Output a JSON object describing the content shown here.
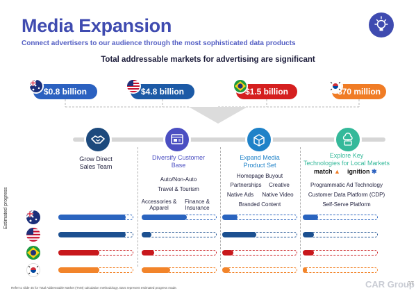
{
  "header": {
    "title": "Media Expansion",
    "subtitle": "Connect advertisers to our audience through the most sophisticated data products",
    "headline": "Total addressable markets for advertising are significant"
  },
  "markets": [
    {
      "label": "$0.8 billion",
      "color": "#2b61c0",
      "flag": "australia"
    },
    {
      "label": "$4.8 billion",
      "color": "#1c5aa6",
      "flag": "united-states"
    },
    {
      "label": "$1.5 billion",
      "color": "#d51f1f",
      "flag": "brazil"
    },
    {
      "label": "$70 million",
      "color": "#f07c25",
      "flag": "south-korea"
    }
  ],
  "columns": {
    "col1": {
      "title_line1": "Grow Direct",
      "title_line2": "Sales Team",
      "color": "#1d4a7d",
      "icon": "handshake-icon"
    },
    "col2": {
      "title_line1": "Diversify Customer",
      "title_line2": "Base",
      "color": "#4b4fc2",
      "icon": "browser-window-icon",
      "items": {
        "a": "Auto/Non-Auto",
        "b": "Travel & Tourism",
        "c1": "Accessories &",
        "c2": "Apparel",
        "d1": "Finance &",
        "d2": "Insurance"
      }
    },
    "col3": {
      "title_line1": "Expand Media",
      "title_line2": "Product Set",
      "color": "#1f82c8",
      "icon": "box-icon",
      "items": {
        "a": "Homepage Buyout",
        "b": "Partnerships",
        "c": "Creative",
        "d": "Native Ads",
        "e": "Native Video",
        "f": "Branded Content"
      }
    },
    "col4": {
      "title_line1": "Explore Key",
      "title_line2": "Technologies for Local Markets",
      "color": "#35b99a",
      "icon": "cloud-monitor-icon",
      "partner1": "match",
      "partner2": "ignition",
      "items": {
        "a": "Programmatic Ad Technology",
        "b": "Customer Data Platform (CDP)",
        "c": "Self-Serve Platform"
      }
    }
  },
  "progress": {
    "axis_label": "Estimated progress",
    "rows": [
      {
        "country": "australia",
        "color": "#2a64bf",
        "values": [
          0.9,
          0.6,
          0.2,
          0.2
        ]
      },
      {
        "country": "united-states",
        "color": "#1c5090",
        "values": [
          0.9,
          0.13,
          0.45,
          0.15
        ]
      },
      {
        "country": "brazil",
        "color": "#c8181c",
        "values": [
          0.55,
          0.17,
          0.15,
          0.15
        ]
      },
      {
        "country": "south-korea",
        "color": "#f2842a",
        "values": [
          0.55,
          0.38,
          0.1,
          0.06
        ]
      }
    ]
  },
  "footer": {
    "footnote": "Refer to slide 45 for Total Addressable Market (TAM) calculation methodology. Bars represent estimated progress made.",
    "logo": "CAR Group",
    "page": "37"
  }
}
